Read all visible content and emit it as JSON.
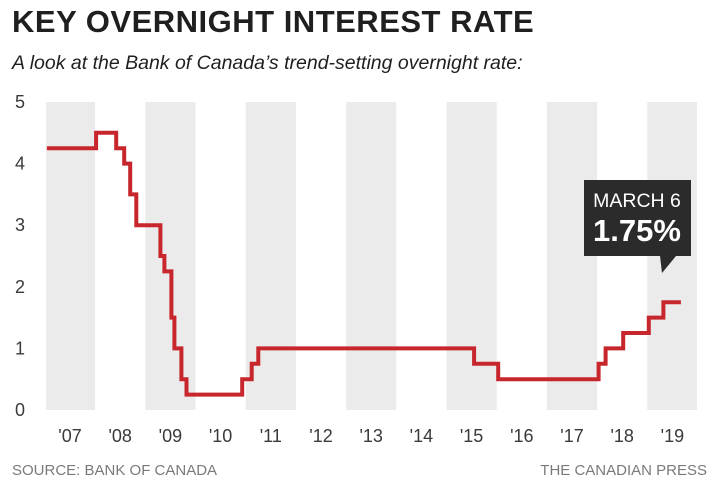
{
  "title": "KEY OVERNIGHT INTEREST RATE",
  "subtitle": "A look at the Bank of Canada’s trend-setting overnight rate:",
  "source": "SOURCE: BANK OF CANADA",
  "credit": "THE CANADIAN PRESS",
  "colors": {
    "line": "#c8262d",
    "band": "#ebebeb",
    "callout_bg": "#2b2b2b",
    "callout_text": "#ffffff"
  },
  "chart_data": {
    "type": "line",
    "title": "KEY OVERNIGHT INTEREST RATE",
    "subtitle": "A look at the Bank of Canada’s trend-setting overnight rate:",
    "xlabel": "",
    "ylabel": "",
    "ylim": [
      0,
      5
    ],
    "xlim": [
      2006.5,
      2019.5
    ],
    "y_ticks": [
      "0",
      "1",
      "2",
      "3",
      "4",
      "5"
    ],
    "x_ticks": [
      "'07",
      "'08",
      "'09",
      "'10",
      "'11",
      "'12",
      "'13",
      "'14",
      "'15",
      "'16",
      "'17",
      "'18",
      "'19"
    ],
    "grid": "alternating vertical year bands",
    "legend": "none",
    "line_style": "step",
    "series": [
      {
        "points": [
          [
            2006.54,
            4.25
          ],
          [
            2007.52,
            4.5
          ],
          [
            2007.92,
            4.25
          ],
          [
            2008.08,
            4.0
          ],
          [
            2008.2,
            3.5
          ],
          [
            2008.32,
            3.0
          ],
          [
            2008.8,
            2.5
          ],
          [
            2008.88,
            2.25
          ],
          [
            2009.02,
            1.5
          ],
          [
            2009.08,
            1.0
          ],
          [
            2009.22,
            0.5
          ],
          [
            2009.32,
            0.25
          ],
          [
            2010.43,
            0.5
          ],
          [
            2010.62,
            0.75
          ],
          [
            2010.75,
            1.0
          ],
          [
            2015.05,
            0.75
          ],
          [
            2015.53,
            0.5
          ],
          [
            2017.53,
            0.75
          ],
          [
            2017.67,
            1.0
          ],
          [
            2018.02,
            1.25
          ],
          [
            2018.53,
            1.5
          ],
          [
            2018.82,
            1.75
          ],
          [
            2019.17,
            1.75
          ]
        ]
      }
    ],
    "annotations": [
      {
        "label": "MARCH 6",
        "value": "1.75%"
      }
    ]
  }
}
